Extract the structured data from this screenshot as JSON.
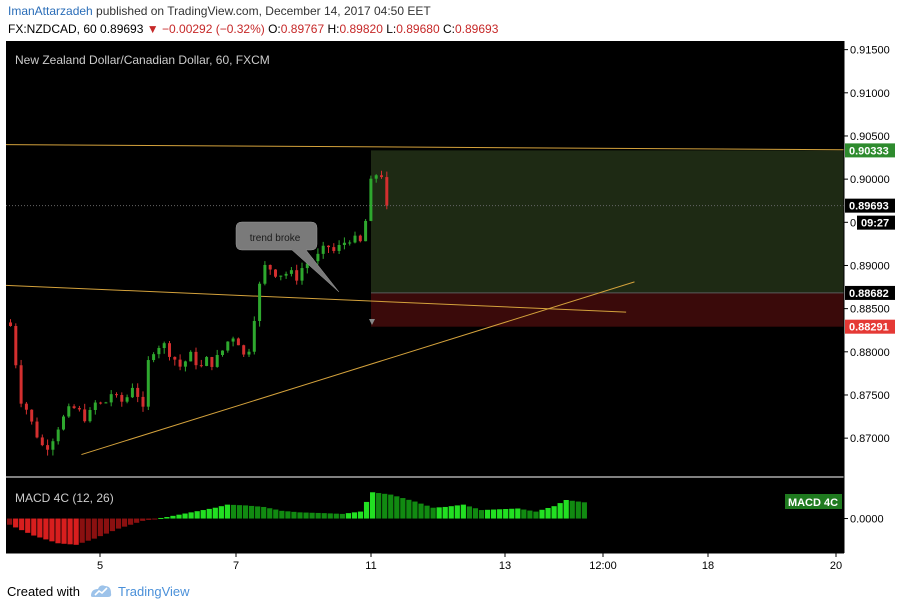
{
  "header": {
    "author": "ImanAttarzadeh",
    "published_text": " published on TradingView.com, December 14, 2017 04:50 EET",
    "symbol": "FX:NZDCAD, 60",
    "last_price": "0.89693",
    "change_arrow": "▼",
    "change": "−0.00292 (−0.32%)",
    "o_label": "O:",
    "o_value": "0.89767",
    "h_label": "H:",
    "h_value": "0.89820",
    "l_label": "L:",
    "l_value": "0.89680",
    "c_label": "C:",
    "c_value": "0.89693"
  },
  "footer": {
    "created_with": "Created with",
    "brand": "TradingView"
  },
  "colors": {
    "background": "#000000",
    "up": "#2ea82e",
    "down": "#d32f2f",
    "trendline": "#d4a23c",
    "profit_zone": "#1e2a14",
    "loss_zone": "#3a0a0a",
    "macd_up": "#1fbf1f",
    "macd_down": "#c21a1a"
  },
  "chart_data": [
    {
      "type": "candlestick",
      "title": "New Zealand Dollar/Canadian Dollar, 60, FXCM",
      "y_ticks": [
        0.915,
        0.91,
        0.905,
        0.9,
        0.895,
        0.89,
        0.885,
        0.88,
        0.875,
        0.87
      ],
      "y_tick_labels": [
        "0.91500",
        "0.91000",
        "0.90500",
        "0.90000",
        "",
        "0.89000",
        "0.88500",
        "0.88000",
        "0.87500",
        "0.87000"
      ],
      "ylim": [
        0.8655,
        0.916
      ],
      "x_labels": [
        "5",
        "7",
        "11",
        "13",
        "12:00",
        "18",
        "20"
      ],
      "price_labels": [
        {
          "value": 0.90333,
          "text": "0.90333",
          "color": "#2e8b2e"
        },
        {
          "value": 0.89693,
          "text": "0.89693",
          "color": "#ffffff"
        },
        {
          "value": 0.88682,
          "text": "0.88682",
          "color": "#ffffff"
        },
        {
          "value": 0.88291,
          "text": "0.88291",
          "color": "#e53935"
        }
      ],
      "countdown": "09:27",
      "countdown_prefix": "0",
      "annotation": "trend broke",
      "position": {
        "entry": 0.88682,
        "target": 0.90333,
        "stop": 0.88291
      },
      "trendlines": [
        {
          "from": [
            0,
            0.904
          ],
          "to": [
            1,
            0.9034
          ]
        },
        {
          "from": [
            0,
            0.8877
          ],
          "to": [
            0.74,
            0.8846
          ]
        },
        {
          "from": [
            0.09,
            0.8681
          ],
          "to": [
            0.75,
            0.8881
          ]
        }
      ],
      "waypoints": [
        [
          0,
          0.883
        ],
        [
          0.6,
          0.8805
        ],
        [
          1.4,
          0.877
        ],
        [
          2.0,
          0.8745
        ],
        [
          2.8,
          0.8738
        ],
        [
          3.6,
          0.8722
        ],
        [
          4.8,
          0.8708
        ],
        [
          5.6,
          0.8692
        ],
        [
          6.6,
          0.869
        ],
        [
          7.6,
          0.8695
        ],
        [
          8.6,
          0.871
        ],
        [
          10.0,
          0.8723
        ],
        [
          11.6,
          0.8736
        ],
        [
          13.0,
          0.873
        ],
        [
          14.5,
          0.8722
        ],
        [
          16.0,
          0.874
        ],
        [
          17.6,
          0.8738
        ],
        [
          19.0,
          0.8752
        ],
        [
          20.6,
          0.874
        ],
        [
          22.0,
          0.8748
        ],
        [
          23.5,
          0.8768
        ],
        [
          24.3,
          0.874
        ],
        [
          24.9,
          0.8722
        ],
        [
          25.5,
          0.8775
        ],
        [
          26.5,
          0.88
        ],
        [
          27.5,
          0.8806
        ],
        [
          28.6,
          0.881
        ],
        [
          30.0,
          0.88
        ],
        [
          31.2,
          0.879
        ],
        [
          32.4,
          0.878
        ],
        [
          33.5,
          0.8797
        ],
        [
          34.6,
          0.8793
        ],
        [
          35.8,
          0.878
        ],
        [
          37.0,
          0.879
        ],
        [
          38.2,
          0.8787
        ],
        [
          39.4,
          0.8795
        ],
        [
          40.6,
          0.8808
        ],
        [
          41.8,
          0.882
        ],
        [
          43.0,
          0.8812
        ],
        [
          44.2,
          0.8792
        ],
        [
          45.2,
          0.8808
        ],
        [
          46.2,
          0.885
        ],
        [
          47.0,
          0.8876
        ],
        [
          47.8,
          0.8898
        ],
        [
          48.8,
          0.8898
        ],
        [
          50.0,
          0.8892
        ],
        [
          51.4,
          0.889
        ],
        [
          52.6,
          0.8892
        ],
        [
          53.8,
          0.8885
        ],
        [
          55.0,
          0.8897
        ],
        [
          56.4,
          0.8905
        ],
        [
          57.6,
          0.8907
        ],
        [
          58.8,
          0.8916
        ],
        [
          60.0,
          0.8922
        ],
        [
          61.2,
          0.8915
        ],
        [
          62.6,
          0.8925
        ],
        [
          64.0,
          0.8932
        ],
        [
          65.2,
          0.8928
        ],
        [
          66.4,
          0.8925
        ],
        [
          67.2,
          0.896
        ],
        [
          68.0,
          0.8995
        ],
        [
          69.2,
          0.9008
        ],
        [
          70.2,
          0.9005
        ],
        [
          71.0,
          0.8994
        ],
        [
          71.6,
          0.8969
        ]
      ],
      "bar_count": 72,
      "last_close": 0.89693
    },
    {
      "type": "histogram",
      "title": "MACD 4C (12, 26)",
      "badge": "MACD 4C",
      "y_ticks": [
        0.0
      ],
      "y_tick_labels": [
        "0.0000"
      ],
      "ylim": [
        -0.0042,
        0.0046
      ],
      "zero_line": 0.0,
      "series": [
        {
          "name": "MACD 4C (12, 26)",
          "waypoints": [
            [
              0,
              -0.0008
            ],
            [
              4,
              -0.0022
            ],
            [
              8,
              -0.0032
            ],
            [
              11,
              -0.0034
            ],
            [
              14,
              -0.0026
            ],
            [
              18,
              -0.0013
            ],
            [
              22,
              -0.0003
            ],
            [
              26,
              0.0002
            ],
            [
              30,
              0.0008
            ],
            [
              34,
              0.0014
            ],
            [
              36,
              0.0018
            ],
            [
              39,
              0.0017
            ],
            [
              42,
              0.0015
            ],
            [
              45,
              0.001
            ],
            [
              48,
              0.0008
            ],
            [
              52,
              0.0007
            ],
            [
              55,
              0.0006
            ],
            [
              58,
              0.0009
            ],
            [
              60,
              0.0034
            ],
            [
              63,
              0.0031
            ],
            [
              67,
              0.0022
            ],
            [
              70,
              0.0014
            ],
            [
              72,
              0.0015
            ],
            [
              75,
              0.0018
            ],
            [
              78,
              0.0011
            ],
            [
              81,
              0.0012
            ],
            [
              84,
              0.0013
            ],
            [
              87,
              0.0009
            ],
            [
              90,
              0.0016
            ],
            [
              92,
              0.0024
            ],
            [
              95,
              0.0021
            ]
          ],
          "bar_count": 96
        }
      ]
    }
  ]
}
